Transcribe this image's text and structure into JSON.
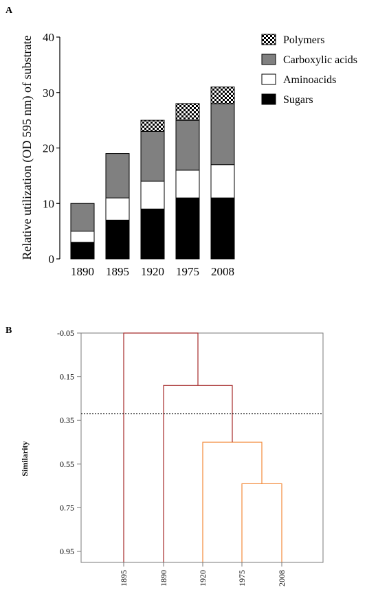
{
  "figure": {
    "panel_a_label": "A",
    "panel_b_label": "B"
  },
  "chart_data": [
    {
      "type": "bar",
      "stacked": true,
      "panel": "A",
      "title": "",
      "xlabel": "",
      "ylabel": "Relative utilization (OD 595 nm) of substrate",
      "ylim": [
        0,
        40
      ],
      "yticks": [
        0,
        10,
        20,
        30,
        40
      ],
      "categories": [
        "1890",
        "1895",
        "1920",
        "1975",
        "2008"
      ],
      "legend_position": "top-right",
      "series": [
        {
          "name": "Sugars",
          "values": [
            3,
            7,
            9,
            11,
            11
          ],
          "color": "#000000",
          "pattern": "solid"
        },
        {
          "name": "Aminoacids",
          "values": [
            2,
            4,
            5,
            5,
            6
          ],
          "color": "#ffffff",
          "pattern": "solid"
        },
        {
          "name": "Carboxylic acids",
          "values": [
            5,
            8,
            9,
            9,
            11
          ],
          "color": "#808080",
          "pattern": "solid"
        },
        {
          "name": "Polymers",
          "values": [
            0,
            0,
            2,
            3,
            3
          ],
          "color": "#000000",
          "pattern": "checker"
        }
      ],
      "legend_order": [
        "Polymers",
        "Carboxylic acids",
        "Aminoacids",
        "Sugars"
      ]
    },
    {
      "type": "dendrogram",
      "panel": "B",
      "title": "",
      "ylabel": "Similarity",
      "ylim": [
        -0.05,
        1.0
      ],
      "yticks": [
        "-0.05",
        "0.15",
        "0.35",
        "0.55",
        "0.75",
        "0.95"
      ],
      "leaves": [
        "1895",
        "1890",
        "1920",
        "1975",
        "2008"
      ],
      "cutoff_line": 0.32,
      "merges": [
        {
          "left": "1975",
          "right": "2008",
          "height": 0.64,
          "color": "#f28a3a"
        },
        {
          "left": "1920",
          "right": "1975+2008",
          "height": 0.45,
          "color": "#f28a3a"
        },
        {
          "left": "1890",
          "right": "1920+1975+2008",
          "height": 0.19,
          "color": "#a52a2a"
        },
        {
          "left": "1895",
          "right": "1890+1920+1975+2008",
          "height": -0.05,
          "color": "#a52a2a"
        }
      ]
    }
  ]
}
